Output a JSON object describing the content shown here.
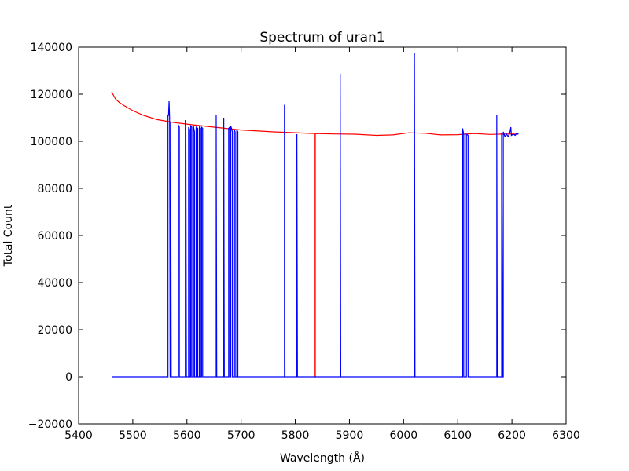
{
  "chart_data": {
    "type": "line",
    "title": "Spectrum of uran1",
    "x_label": "Wavelength (Å)",
    "y_label": "Total Count",
    "xlim": [
      5400,
      6300
    ],
    "xticks": [
      5400,
      5500,
      5600,
      5700,
      5800,
      5900,
      6000,
      6100,
      6200,
      6300
    ],
    "ylim": [
      -20000,
      140000
    ],
    "yticks": [
      {
        "value": -20000,
        "label": "−20000"
      },
      0,
      20000,
      40000,
      60000,
      80000,
      100000,
      120000,
      140000
    ],
    "grid": false,
    "series": [
      {
        "color": "#ff0000",
        "x": [
          5461,
          5468,
          5475,
          5485,
          5500,
          5520,
          5545,
          5575,
          5610,
          5650,
          5700,
          5760,
          5835,
          5835,
          5837,
          5837,
          5870,
          5910,
          5950,
          5980,
          6010,
          6040,
          6068,
          6100,
          6130,
          6160,
          6190,
          6212
        ],
        "values": [
          121000,
          118000,
          116500,
          115000,
          113000,
          111000,
          109200,
          108000,
          107000,
          106000,
          104800,
          104000,
          103300,
          0,
          0,
          103300,
          103100,
          103000,
          102500,
          102700,
          103600,
          103400,
          102700,
          102800,
          103300,
          102900,
          103100,
          103000
        ]
      },
      {
        "color": "#0000ff",
        "x": [
          5461,
          5565,
          5565,
          5566,
          5567,
          5568,
          5569,
          5570,
          5570,
          5571,
          5584,
          5584,
          5586,
          5586,
          5597,
          5597,
          5598,
          5599,
          5603,
          5603,
          5605,
          5605,
          5607,
          5607,
          5609,
          5609,
          5612,
          5612,
          5614,
          5614,
          5617,
          5617,
          5620,
          5620,
          5623,
          5623,
          5625,
          5625,
          5627,
          5627,
          5629,
          5629,
          5654,
          5654,
          5655,
          5668,
          5668,
          5669,
          5677,
          5677,
          5679,
          5679,
          5681,
          5681,
          5684,
          5684,
          5687,
          5687,
          5689,
          5689,
          5692,
          5692,
          5694,
          5694,
          5780,
          5780,
          5781,
          5803,
          5803,
          5804,
          5883,
          5883,
          5884,
          6020,
          6020,
          6021,
          6109,
          6109,
          6111,
          6111,
          6116,
          6116,
          6119,
          6119,
          6172,
          6172,
          6173,
          6181,
          6181,
          6183,
          6184,
          6184,
          6187,
          6190,
          6193,
          6196,
          6198,
          6199,
          6203,
          6206,
          6209,
          6212
        ],
        "values": [
          0,
          0,
          111000,
          111000,
          117000,
          110000,
          0,
          0,
          108000,
          0,
          0,
          107000,
          106000,
          0,
          0,
          109000,
          106000,
          0,
          0,
          106000,
          105000,
          0,
          0,
          106500,
          106000,
          0,
          0,
          106500,
          104000,
          0,
          0,
          106000,
          105500,
          0,
          0,
          106000,
          105500,
          0,
          0,
          106000,
          105500,
          0,
          0,
          111000,
          0,
          0,
          110000,
          0,
          0,
          105500,
          106000,
          0,
          0,
          106500,
          104000,
          0,
          0,
          105000,
          104000,
          0,
          0,
          105000,
          104000,
          0,
          0,
          115500,
          0,
          0,
          103000,
          0,
          0,
          128700,
          0,
          0,
          137600,
          0,
          0,
          105500,
          103000,
          0,
          0,
          103000,
          102500,
          0,
          0,
          111000,
          0,
          0,
          103500,
          0,
          0,
          104000,
          102000,
          103000,
          102000,
          103500,
          106000,
          102500,
          103000,
          102500,
          103500,
          103000
        ]
      }
    ]
  }
}
